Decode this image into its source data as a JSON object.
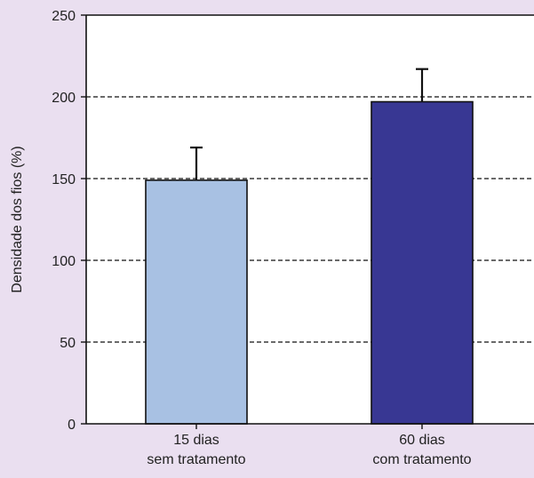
{
  "chart_data": {
    "type": "bar",
    "categories": [
      [
        "15 dias",
        "sem tratamento"
      ],
      [
        "60 dias",
        "com tratamento"
      ]
    ],
    "values": [
      149,
      197
    ],
    "errors": [
      20,
      20
    ],
    "colors": [
      "#a8c1e3",
      "#383793"
    ],
    "ylabel": "Densidade dos fios (%)",
    "ylim": [
      0,
      250
    ],
    "yticks": [
      0,
      50,
      100,
      150,
      200,
      250
    ],
    "grid": "horizontal dashed"
  },
  "style": {
    "background": "#eadff0",
    "plot_background": "#ffffff",
    "axis_color": "#111111",
    "grid_color": "#111111"
  }
}
